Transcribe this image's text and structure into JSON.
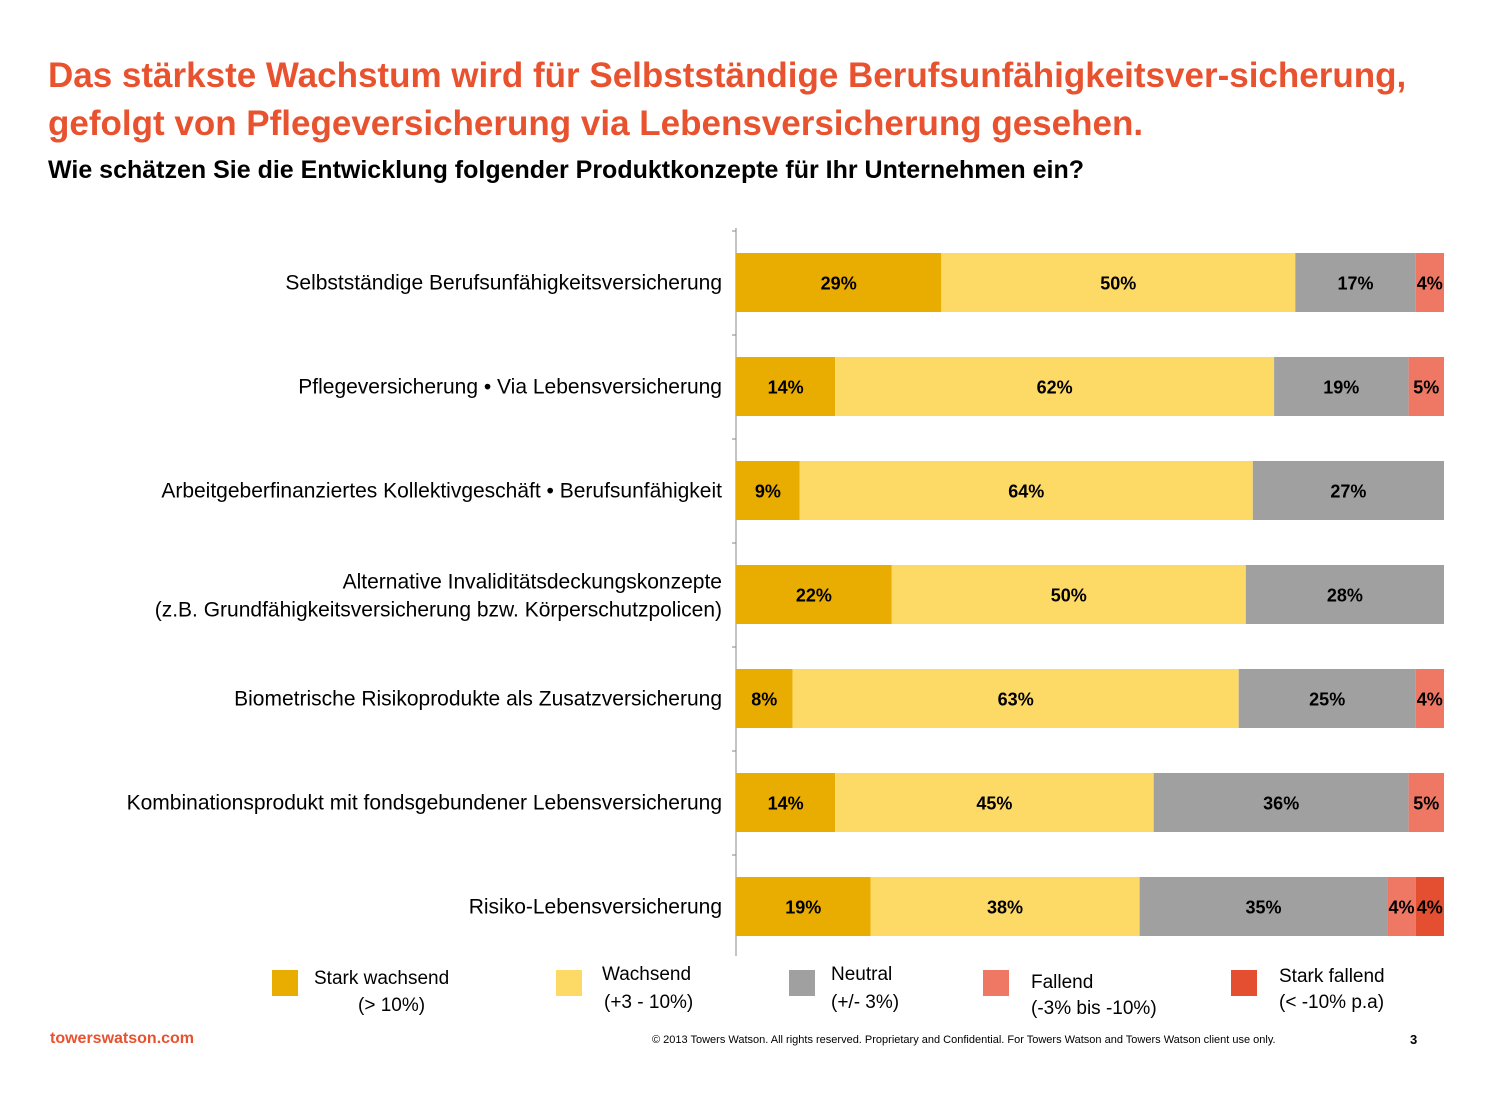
{
  "title": "Das stärkste Wachstum wird für Selbstständige Berufsunfähigkeitsver-sicherung, gefolgt von Pflegeversicherung via Lebensversicherung gesehen.",
  "subtitle": "Wie schätzen Sie die Entwicklung folgender Produktkonzepte für Ihr Unternehmen ein?",
  "colors": {
    "stark_wachsend": "#e8ad00",
    "wachsend": "#fdda66",
    "neutral": "#a0a0a0",
    "fallend": "#ef7865",
    "stark_fallend": "#e34f30",
    "title": "#e8522f"
  },
  "chart_data": {
    "type": "bar",
    "orientation": "horizontal",
    "stacked": true,
    "unit": "%",
    "categories": [
      "Selbstständige Berufsunfähigkeitsversicherung",
      "Pflegeversicherung • Via Lebensversicherung",
      "Arbeitgeberfinanziertes Kollektivgeschäft • Berufsunfähigkeit",
      "Alternative Invaliditätsdeckungskonzepte (z.B. Grundfähigkeitsversicherung bzw. Körperschutzpolicen)",
      "Biometrische Risikoprodukte als Zusatzversicherung",
      "Kombinationsprodukt mit fondsgebundener Lebensversicherung",
      "Risiko-Lebensversicherung"
    ],
    "series": [
      {
        "name": "Stark wachsend (> 10%)",
        "values": [
          29,
          14,
          9,
          22,
          8,
          14,
          19
        ]
      },
      {
        "name": "Wachsend (+3 - 10%)",
        "values": [
          50,
          62,
          64,
          50,
          63,
          45,
          38
        ]
      },
      {
        "name": "Neutral (+/- 3%)",
        "values": [
          17,
          19,
          27,
          28,
          25,
          36,
          35
        ]
      },
      {
        "name": "Fallend (-3% bis -10%)",
        "values": [
          4,
          5,
          0,
          0,
          4,
          5,
          4
        ]
      },
      {
        "name": "Stark fallend (< -10% p.a)",
        "values": [
          0,
          0,
          0,
          0,
          0,
          0,
          4
        ]
      }
    ],
    "legend_position": "bottom"
  },
  "legend": [
    {
      "label": "Stark wachsend",
      "sub": "(> 10%)"
    },
    {
      "label": "Wachsend",
      "sub": "(+3 - 10%)"
    },
    {
      "label": "Neutral",
      "sub": "(+/- 3%)"
    },
    {
      "label": "Fallend",
      "sub": "(-3% bis -10%)"
    },
    {
      "label": "Stark fallend",
      "sub": "(< -10% p.a)"
    }
  ],
  "footer": {
    "brand": "towerswatson.com",
    "copyright": "© 2013 Towers Watson. All rights reserved. Proprietary and Confidential. For Towers Watson and Towers Watson client use only.",
    "page": "3"
  }
}
